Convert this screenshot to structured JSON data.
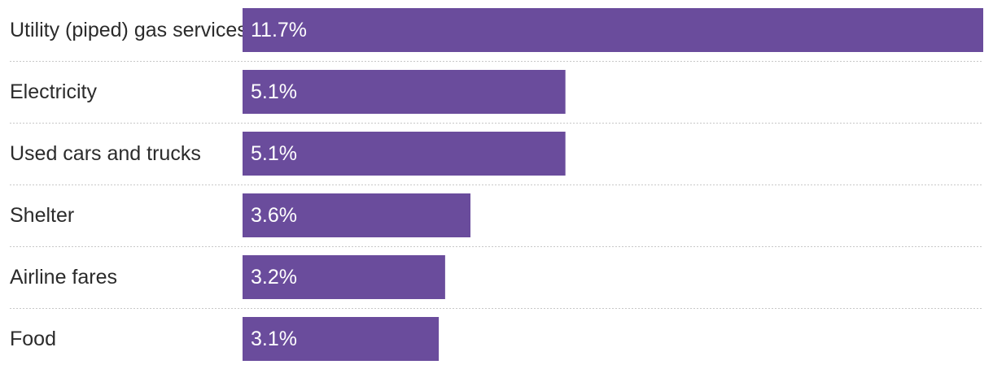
{
  "chart_data": {
    "type": "bar",
    "orientation": "horizontal",
    "categories": [
      "Utility (piped) gas services",
      "Electricity",
      "Used cars and trucks",
      "Shelter",
      "Airline fares",
      "Food"
    ],
    "values": [
      11.7,
      5.1,
      5.1,
      3.6,
      3.2,
      3.1
    ],
    "value_labels": [
      "11.7%",
      "5.1%",
      "5.1%",
      "3.6%",
      "3.2%",
      "3.1%"
    ],
    "unit": "%",
    "xlim": [
      0,
      11.7
    ],
    "bar_color": "#6a4c9c",
    "grid": false,
    "separators": "dotted"
  }
}
